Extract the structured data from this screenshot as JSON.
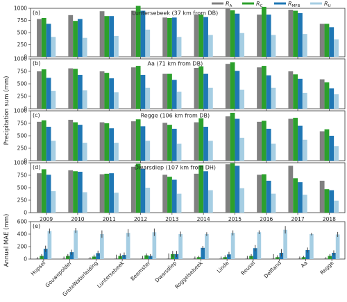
{
  "chart_data": [
    {
      "type": "bar",
      "panel": "(a)",
      "title": "Luntersebeek (37 km from DB)",
      "categories": [
        "2009",
        "2010",
        "2011",
        "2012",
        "2013",
        "2014",
        "2015",
        "2016",
        "2017",
        "2018"
      ],
      "ylim": [
        0,
        1000
      ],
      "yticks": [
        0,
        250,
        500,
        750,
        1000
      ],
      "series": [
        {
          "name": "R_A",
          "values": [
            780,
            860,
            940,
            950,
            810,
            870,
            990,
            870,
            970,
            680
          ]
        },
        {
          "name": "R_C",
          "values": [
            800,
            740,
            840,
            1050,
            800,
            870,
            960,
            1030,
            950,
            680
          ]
        },
        {
          "name": "R_MFB",
          "values": [
            680,
            780,
            840,
            950,
            810,
            820,
            890,
            870,
            900,
            610
          ]
        },
        {
          "name": "R_U",
          "values": [
            410,
            390,
            430,
            560,
            410,
            450,
            490,
            450,
            470,
            360
          ]
        }
      ]
    },
    {
      "type": "bar",
      "panel": "(b)",
      "title": "Aa (71 km from DB)",
      "categories": [
        "2009",
        "2010",
        "2011",
        "2012",
        "2013",
        "2014",
        "2015",
        "2016",
        "2017",
        "2018"
      ],
      "ylim": [
        0,
        1000
      ],
      "yticks": [
        0,
        250,
        500,
        750,
        1000
      ],
      "series": [
        {
          "name": "R_A",
          "values": [
            750,
            810,
            750,
            830,
            700,
            820,
            900,
            830,
            750,
            590
          ]
        },
        {
          "name": "R_C",
          "values": [
            790,
            800,
            720,
            860,
            700,
            850,
            930,
            860,
            690,
            530
          ]
        },
        {
          "name": "R_MFB",
          "values": [
            620,
            680,
            610,
            680,
            580,
            700,
            760,
            670,
            600,
            410
          ]
        },
        {
          "name": "R_U",
          "values": [
            360,
            370,
            330,
            420,
            340,
            420,
            380,
            420,
            320,
            290
          ]
        }
      ]
    },
    {
      "type": "bar",
      "panel": "(c)",
      "title": "Regge (106 km from DB)",
      "categories": [
        "2009",
        "2010",
        "2011",
        "2012",
        "2013",
        "2014",
        "2015",
        "2016",
        "2017",
        "2018"
      ],
      "ylim": [
        0,
        1000
      ],
      "yticks": [
        0,
        250,
        500,
        750,
        1000
      ],
      "series": [
        {
          "name": "R_A",
          "values": [
            780,
            820,
            770,
            790,
            760,
            770,
            890,
            780,
            840,
            590
          ]
        },
        {
          "name": "R_C",
          "values": [
            810,
            770,
            750,
            830,
            720,
            850,
            960,
            800,
            860,
            630
          ]
        },
        {
          "name": "R_MFB",
          "values": [
            680,
            720,
            650,
            690,
            640,
            680,
            840,
            640,
            700,
            500
          ]
        },
        {
          "name": "R_U",
          "values": [
            400,
            360,
            360,
            400,
            340,
            400,
            460,
            340,
            420,
            290
          ]
        }
      ]
    },
    {
      "type": "bar",
      "panel": "(d)",
      "title": "Dwarsdiep (107 km from DH)",
      "categories": [
        "2009",
        "2010",
        "2011",
        "2012",
        "2013",
        "2014",
        "2015",
        "2016",
        "2017",
        "2018"
      ],
      "ylim": [
        0,
        1000
      ],
      "yticks": [
        0,
        250,
        500,
        750,
        1000
      ],
      "series": [
        {
          "name": "R_A",
          "values": [
            790,
            850,
            770,
            920,
            760,
            780,
            970,
            760,
            940,
            640
          ]
        },
        {
          "name": "R_C",
          "values": [
            870,
            830,
            780,
            980,
            720,
            950,
            990,
            770,
            690,
            470
          ]
        },
        {
          "name": "R_MFB",
          "values": [
            760,
            820,
            790,
            880,
            660,
            830,
            940,
            640,
            610,
            450
          ]
        },
        {
          "name": "R_U",
          "values": [
            430,
            410,
            400,
            500,
            380,
            450,
            490,
            380,
            360,
            240
          ]
        }
      ]
    },
    {
      "type": "bar",
      "panel": "(e)",
      "ylabel": "Annual MAE (mm)",
      "categories": [
        "Hupsel",
        "Gouwepolder",
        "GroteWaterleiding",
        "Luntersebeek",
        "Beemster",
        "Dwarsdiep",
        "Roggelsebeek",
        "Linde",
        "Reusel",
        "Delfland",
        "Aa",
        "Regge"
      ],
      "ylim": [
        0,
        600
      ],
      "yticks": [
        0,
        200,
        400,
        600
      ],
      "series": [
        {
          "name": "R_A",
          "values": [
            10,
            10,
            10,
            10,
            10,
            10,
            10,
            10,
            10,
            10,
            10,
            10
          ],
          "err": [
            20,
            30,
            20,
            60,
            40,
            80,
            30,
            30,
            40,
            70,
            30,
            20
          ]
        },
        {
          "name": "R_C",
          "values": [
            50,
            50,
            40,
            50,
            60,
            80,
            30,
            30,
            50,
            30,
            30,
            50
          ],
          "err": [
            30,
            30,
            30,
            40,
            30,
            50,
            20,
            30,
            30,
            30,
            20,
            30
          ]
        },
        {
          "name": "R_MFB",
          "values": [
            165,
            110,
            95,
            65,
            50,
            80,
            180,
            75,
            175,
            100,
            145,
            100
          ],
          "err": [
            50,
            40,
            40,
            40,
            30,
            50,
            30,
            40,
            50,
            60,
            40,
            40
          ]
        },
        {
          "name": "R_U",
          "values": [
            450,
            460,
            400,
            420,
            430,
            400,
            400,
            420,
            430,
            470,
            400,
            395
          ],
          "err": [
            40,
            40,
            60,
            60,
            60,
            40,
            30,
            40,
            30,
            60,
            20,
            40
          ]
        }
      ]
    }
  ],
  "legend": [
    {
      "base": "R",
      "sub": "A",
      "color": "#808080"
    },
    {
      "base": "R",
      "sub": "C",
      "color": "#2ca02c"
    },
    {
      "base": "R",
      "sub": "MFB",
      "color": "#1f77b4"
    },
    {
      "base": "R",
      "sub": "U",
      "color": "#a6cee3"
    }
  ],
  "shared_ylabel": "Precipitation sum (mm)",
  "colors": [
    "#808080",
    "#2ca02c",
    "#1f77b4",
    "#a6cee3"
  ]
}
